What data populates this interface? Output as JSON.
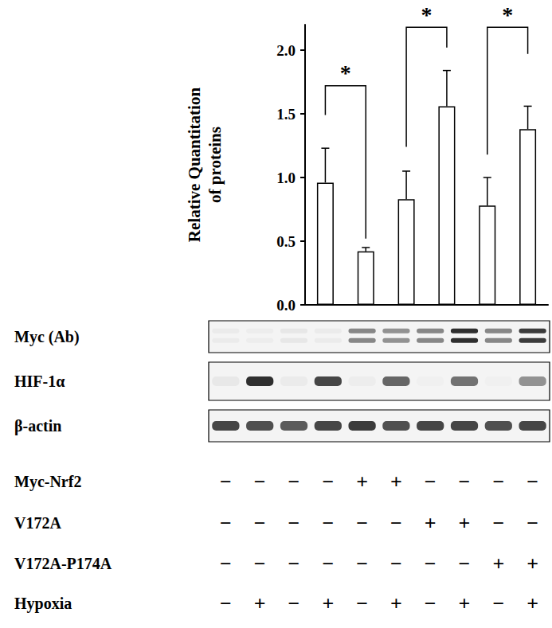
{
  "chart_data": {
    "type": "bar",
    "y_label": "Relative Quantitation\nof proteins",
    "categories": [
      null,
      null,
      null,
      null,
      null,
      null
    ],
    "values": [
      0.96,
      0.42,
      0.83,
      1.56,
      0.78,
      1.38
    ],
    "errors": [
      0.27,
      0.03,
      0.22,
      0.28,
      0.22,
      0.18
    ],
    "color": "#ffffff",
    "ylim": [
      0,
      2.2
    ],
    "yticks": [
      {
        "value": 0,
        "label": "0.0"
      },
      {
        "value": 0.5,
        "label": "0.5"
      },
      {
        "value": 1,
        "label": "1.0"
      },
      {
        "value": 1.5,
        "label": "1.5"
      },
      {
        "value": 2,
        "label": "2.0"
      }
    ],
    "grid": false,
    "data_labels": false,
    "tick_labels": "y",
    "annotations": [
      {
        "text": "*",
        "from": 0,
        "to": 1,
        "y": 1.72,
        "left_end": 1.49,
        "right_end": 0.52
      },
      {
        "text": "*",
        "from": 2,
        "to": 3,
        "y": 2.18,
        "left_end": 1.24,
        "right_end": 2.02
      },
      {
        "text": "*",
        "from": 4,
        "to": 5,
        "y": 2.18,
        "left_end": 1.18,
        "right_end": 1.97
      }
    ]
  },
  "blots": [
    {
      "label": "Myc (Ab)",
      "intensity": [
        0.04,
        0.03,
        0.06,
        0.04,
        0.5,
        0.45,
        0.5,
        0.9,
        0.5,
        0.85
      ]
    },
    {
      "label": "HIF-1α",
      "intensity": [
        0.05,
        0.9,
        0.04,
        0.8,
        0.03,
        0.65,
        0.02,
        0.6,
        0.02,
        0.45
      ]
    },
    {
      "label": "β-actin",
      "intensity": [
        0.8,
        0.75,
        0.7,
        0.8,
        0.85,
        0.75,
        0.8,
        0.8,
        0.75,
        0.8
      ]
    }
  ],
  "conditions": [
    {
      "label": "Myc-Nrf2",
      "signs": [
        "−",
        "−",
        "−",
        "−",
        "+",
        "+",
        "−",
        "−",
        "−",
        "−"
      ]
    },
    {
      "label": "V172A",
      "signs": [
        "−",
        "−",
        "−",
        "−",
        "−",
        "−",
        "+",
        "+",
        "−",
        "−"
      ]
    },
    {
      "label": "V172A-P174A",
      "signs": [
        "−",
        "−",
        "−",
        "−",
        "−",
        "−",
        "−",
        "−",
        "+",
        "+"
      ]
    },
    {
      "label": "Hypoxia",
      "signs": [
        "−",
        "+",
        "−",
        "+",
        "−",
        "+",
        "−",
        "+",
        "−",
        "+"
      ]
    }
  ]
}
